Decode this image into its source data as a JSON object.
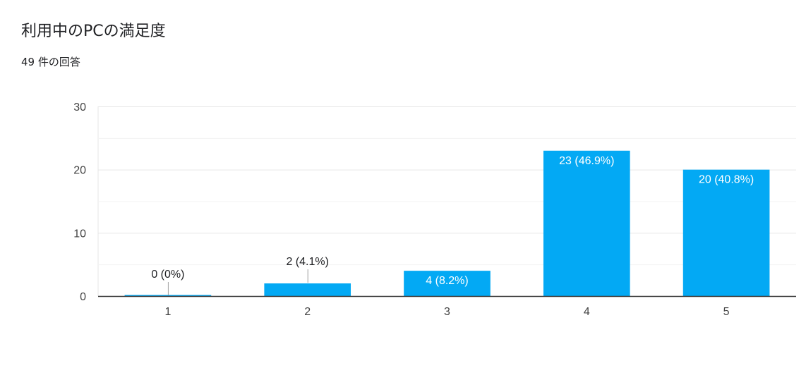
{
  "header": {
    "title": "利用中のPCの満足度",
    "response_count": "49 件の回答"
  },
  "colors": {
    "bar": "#03a9f4",
    "grid": "#e6e6e6",
    "minor_grid": "#f3f3f3",
    "axis": "#333333",
    "label_outside": "#202124",
    "label_inside": "#ffffff"
  },
  "chart_data": {
    "type": "bar",
    "title": "",
    "xlabel": "",
    "ylabel": "",
    "categories": [
      "1",
      "2",
      "3",
      "4",
      "5"
    ],
    "values": [
      0,
      2,
      4,
      23,
      20
    ],
    "data_labels": [
      "0 (0%)",
      "2 (4.1%)",
      "4 (8.2%)",
      "23 (46.9%)",
      "20 (40.8%)"
    ],
    "ylim": [
      0,
      30
    ],
    "yticks": [
      0,
      10,
      20,
      30
    ],
    "minor_grid": true,
    "grid": true,
    "legend": "none"
  }
}
